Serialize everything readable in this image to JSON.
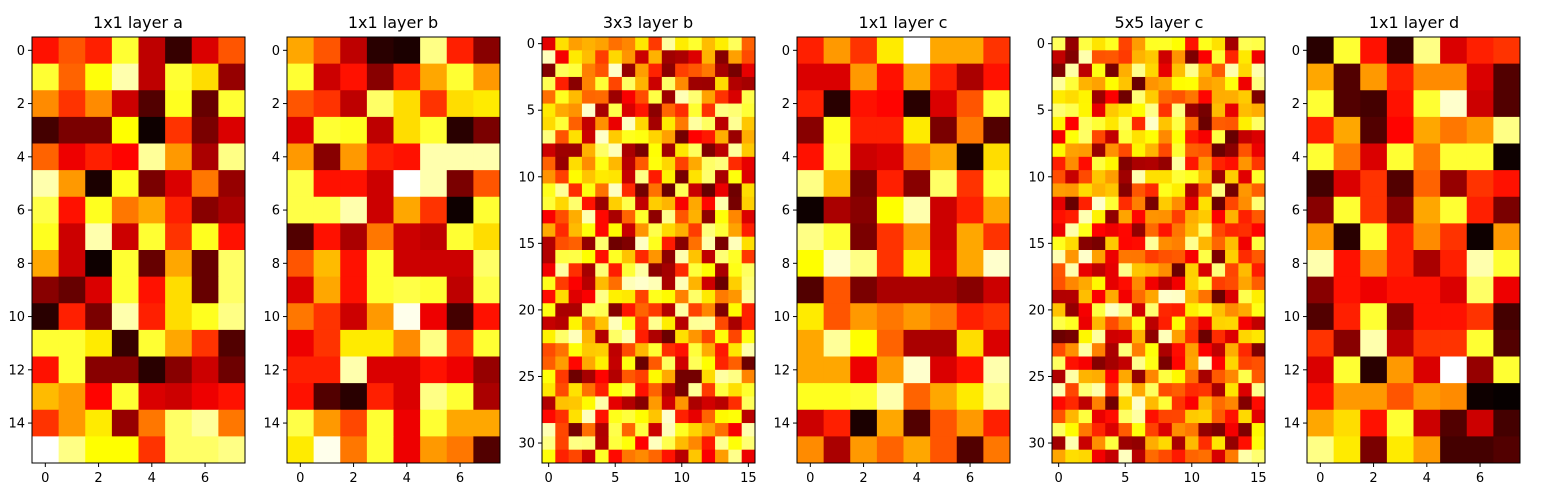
{
  "chart_data": [
    {
      "type": "heatmap",
      "title": "1x1 layer a",
      "colormap": "hot",
      "rows": 16,
      "cols": 8,
      "xticks": [
        0,
        2,
        4,
        6
      ],
      "yticks": [
        0,
        2,
        4,
        6,
        8,
        10,
        12,
        14
      ],
      "values": [
        [
          0.4,
          0.5,
          0.42,
          0.8,
          0.28,
          0.08,
          0.32,
          0.5
        ],
        [
          0.8,
          0.52,
          0.76,
          0.92,
          0.28,
          0.8,
          0.7,
          0.22
        ],
        [
          0.58,
          0.45,
          0.58,
          0.3,
          0.12,
          0.78,
          0.15,
          0.8
        ],
        [
          0.1,
          0.18,
          0.18,
          0.75,
          0.02,
          0.45,
          0.18,
          0.32
        ],
        [
          0.52,
          0.35,
          0.42,
          0.38,
          0.9,
          0.6,
          0.25,
          0.88
        ],
        [
          0.92,
          0.6,
          0.04,
          0.78,
          0.18,
          0.32,
          0.55,
          0.22
        ],
        [
          0.82,
          0.4,
          0.78,
          0.55,
          0.62,
          0.42,
          0.2,
          0.25
        ],
        [
          0.78,
          0.3,
          0.92,
          0.3,
          0.8,
          0.45,
          0.78,
          0.4
        ],
        [
          0.62,
          0.3,
          0.02,
          0.8,
          0.15,
          0.62,
          0.15,
          0.85
        ],
        [
          0.2,
          0.15,
          0.32,
          0.8,
          0.4,
          0.7,
          0.15,
          0.85
        ],
        [
          0.06,
          0.42,
          0.18,
          0.92,
          0.42,
          0.7,
          0.78,
          0.88
        ],
        [
          0.8,
          0.8,
          0.72,
          0.08,
          0.8,
          0.62,
          0.45,
          0.12
        ],
        [
          0.4,
          0.8,
          0.2,
          0.2,
          0.06,
          0.2,
          0.3,
          0.16
        ],
        [
          0.65,
          0.6,
          0.38,
          0.8,
          0.32,
          0.3,
          0.35,
          0.4
        ],
        [
          0.45,
          0.6,
          0.72,
          0.22,
          0.55,
          0.85,
          0.9,
          0.55
        ],
        [
          1.0,
          0.88,
          0.75,
          0.75,
          0.45,
          0.85,
          0.85,
          0.88
        ]
      ]
    },
    {
      "type": "heatmap",
      "title": "1x1 layer b",
      "colormap": "hot",
      "rows": 16,
      "cols": 8,
      "xticks": [
        0,
        2,
        4,
        6
      ],
      "yticks": [
        0,
        2,
        4,
        6,
        8,
        10,
        12,
        14
      ],
      "values": [
        [
          0.62,
          0.5,
          0.28,
          0.06,
          0.04,
          0.88,
          0.42,
          0.2
        ],
        [
          0.8,
          0.3,
          0.4,
          0.2,
          0.42,
          0.62,
          0.8,
          0.6
        ],
        [
          0.5,
          0.45,
          0.28,
          0.85,
          0.7,
          0.45,
          0.7,
          0.72
        ],
        [
          0.32,
          0.8,
          0.78,
          0.28,
          0.7,
          0.8,
          0.06,
          0.18
        ],
        [
          0.6,
          0.2,
          0.6,
          0.42,
          0.4,
          0.92,
          0.92,
          0.92
        ],
        [
          0.82,
          0.4,
          0.4,
          0.3,
          1.0,
          0.92,
          0.18,
          0.5
        ],
        [
          0.82,
          0.82,
          0.92,
          0.3,
          0.62,
          0.45,
          0.02,
          0.8
        ],
        [
          0.12,
          0.4,
          0.25,
          0.55,
          0.3,
          0.28,
          0.8,
          0.7
        ],
        [
          0.5,
          0.65,
          0.4,
          0.8,
          0.3,
          0.3,
          0.3,
          0.85
        ],
        [
          0.32,
          0.62,
          0.4,
          0.8,
          0.82,
          0.8,
          0.28,
          0.82
        ],
        [
          0.55,
          0.45,
          0.3,
          0.6,
          0.98,
          0.35,
          0.1,
          0.4
        ],
        [
          0.35,
          0.45,
          0.72,
          0.72,
          0.58,
          0.88,
          0.45,
          0.8
        ],
        [
          0.42,
          0.42,
          0.92,
          0.32,
          0.32,
          0.4,
          0.35,
          0.22
        ],
        [
          0.4,
          0.12,
          0.06,
          0.42,
          0.32,
          0.88,
          0.8,
          0.25
        ],
        [
          0.82,
          0.6,
          0.48,
          0.8,
          0.35,
          0.8,
          0.62,
          0.62
        ],
        [
          0.72,
          0.98,
          0.55,
          0.8,
          0.35,
          0.6,
          0.55,
          0.12
        ]
      ]
    },
    {
      "type": "heatmap",
      "title": "3x3 layer b",
      "colormap": "hot",
      "rows": 32,
      "cols": 16,
      "xticks": [
        0,
        5,
        10,
        15
      ],
      "yticks": [
        0,
        5,
        10,
        15,
        20,
        25,
        30
      ],
      "values": "generated-32x16"
    },
    {
      "type": "heatmap",
      "title": "1x1 layer c",
      "colormap": "hot",
      "rows": 16,
      "cols": 8,
      "xticks": [
        0,
        2,
        4,
        6
      ],
      "yticks": [
        0,
        2,
        4,
        6,
        8,
        10,
        12,
        14
      ],
      "values": [
        [
          0.42,
          0.6,
          0.45,
          0.72,
          1.0,
          0.62,
          0.62,
          0.45
        ],
        [
          0.32,
          0.32,
          0.6,
          0.4,
          0.62,
          0.42,
          0.25,
          0.4
        ],
        [
          0.42,
          0.06,
          0.4,
          0.38,
          0.06,
          0.32,
          0.5,
          0.8
        ],
        [
          0.2,
          0.78,
          0.42,
          0.42,
          0.72,
          0.18,
          0.55,
          0.12
        ],
        [
          0.4,
          0.8,
          0.3,
          0.32,
          0.55,
          0.62,
          0.04,
          0.7
        ],
        [
          0.88,
          0.65,
          0.18,
          0.42,
          0.2,
          0.85,
          0.45,
          0.8
        ],
        [
          0.02,
          0.25,
          0.2,
          0.75,
          0.92,
          0.3,
          0.42,
          0.62
        ],
        [
          0.88,
          0.8,
          0.18,
          0.45,
          0.6,
          0.3,
          0.62,
          0.45
        ],
        [
          0.75,
          0.95,
          0.88,
          0.45,
          0.72,
          0.32,
          0.62,
          0.95
        ],
        [
          0.12,
          0.5,
          0.18,
          0.25,
          0.25,
          0.25,
          0.2,
          0.3
        ],
        [
          0.72,
          0.5,
          0.6,
          0.55,
          0.6,
          0.55,
          0.42,
          0.45
        ],
        [
          0.62,
          0.9,
          0.75,
          0.52,
          0.25,
          0.25,
          0.7,
          0.32
        ],
        [
          0.62,
          0.62,
          0.35,
          0.6,
          0.95,
          0.32,
          0.4,
          0.92
        ],
        [
          0.78,
          0.78,
          0.8,
          0.92,
          0.52,
          0.62,
          0.72,
          0.88
        ],
        [
          0.3,
          0.42,
          0.04,
          0.62,
          0.12,
          0.5,
          0.6,
          0.42
        ],
        [
          0.58,
          0.25,
          0.6,
          0.52,
          0.62,
          0.5,
          0.12,
          0.55
        ]
      ]
    },
    {
      "type": "heatmap",
      "title": "5x5 layer c",
      "colormap": "hot",
      "rows": 32,
      "cols": 16,
      "xticks": [
        0,
        5,
        10,
        15
      ],
      "yticks": [
        0,
        5,
        10,
        15,
        20,
        25,
        30
      ],
      "values": "generated-32x16"
    },
    {
      "type": "heatmap",
      "title": "1x1 layer d",
      "colormap": "hot",
      "rows": 16,
      "cols": 8,
      "xticks": [
        0,
        2,
        4,
        6
      ],
      "yticks": [
        0,
        2,
        4,
        6,
        8,
        10,
        12,
        14
      ],
      "values": [
        [
          0.06,
          0.8,
          0.4,
          0.08,
          0.88,
          0.32,
          0.42,
          0.45
        ],
        [
          0.62,
          0.12,
          0.6,
          0.42,
          0.58,
          0.58,
          0.32,
          0.12
        ],
        [
          0.8,
          0.12,
          0.1,
          0.4,
          0.8,
          0.95,
          0.3,
          0.12
        ],
        [
          0.42,
          0.62,
          0.12,
          0.38,
          0.62,
          0.55,
          0.6,
          0.88
        ],
        [
          0.8,
          0.55,
          0.32,
          0.8,
          0.55,
          0.8,
          0.8,
          0.02
        ],
        [
          0.1,
          0.32,
          0.45,
          0.12,
          0.52,
          0.22,
          0.45,
          0.4
        ],
        [
          0.2,
          0.8,
          0.45,
          0.2,
          0.62,
          0.8,
          0.42,
          0.18
        ],
        [
          0.6,
          0.06,
          0.8,
          0.42,
          0.58,
          0.45,
          0.02,
          0.6
        ],
        [
          0.92,
          0.4,
          0.58,
          0.42,
          0.25,
          0.42,
          0.92,
          0.8
        ],
        [
          0.2,
          0.4,
          0.35,
          0.4,
          0.4,
          0.32,
          0.85,
          0.35
        ],
        [
          0.12,
          0.42,
          0.8,
          0.2,
          0.4,
          0.4,
          0.45,
          0.1
        ],
        [
          0.45,
          0.2,
          0.92,
          0.28,
          0.45,
          0.45,
          0.8,
          0.12
        ],
        [
          0.32,
          0.8,
          0.06,
          0.6,
          0.32,
          1.0,
          0.22,
          0.8
        ],
        [
          0.4,
          0.6,
          0.6,
          0.5,
          0.6,
          0.58,
          0.02,
          0.01
        ],
        [
          0.62,
          0.7,
          0.4,
          0.8,
          0.3,
          0.12,
          0.3,
          0.1
        ],
        [
          0.88,
          0.72,
          0.18,
          0.72,
          0.6,
          0.1,
          0.1,
          0.12
        ]
      ]
    }
  ]
}
